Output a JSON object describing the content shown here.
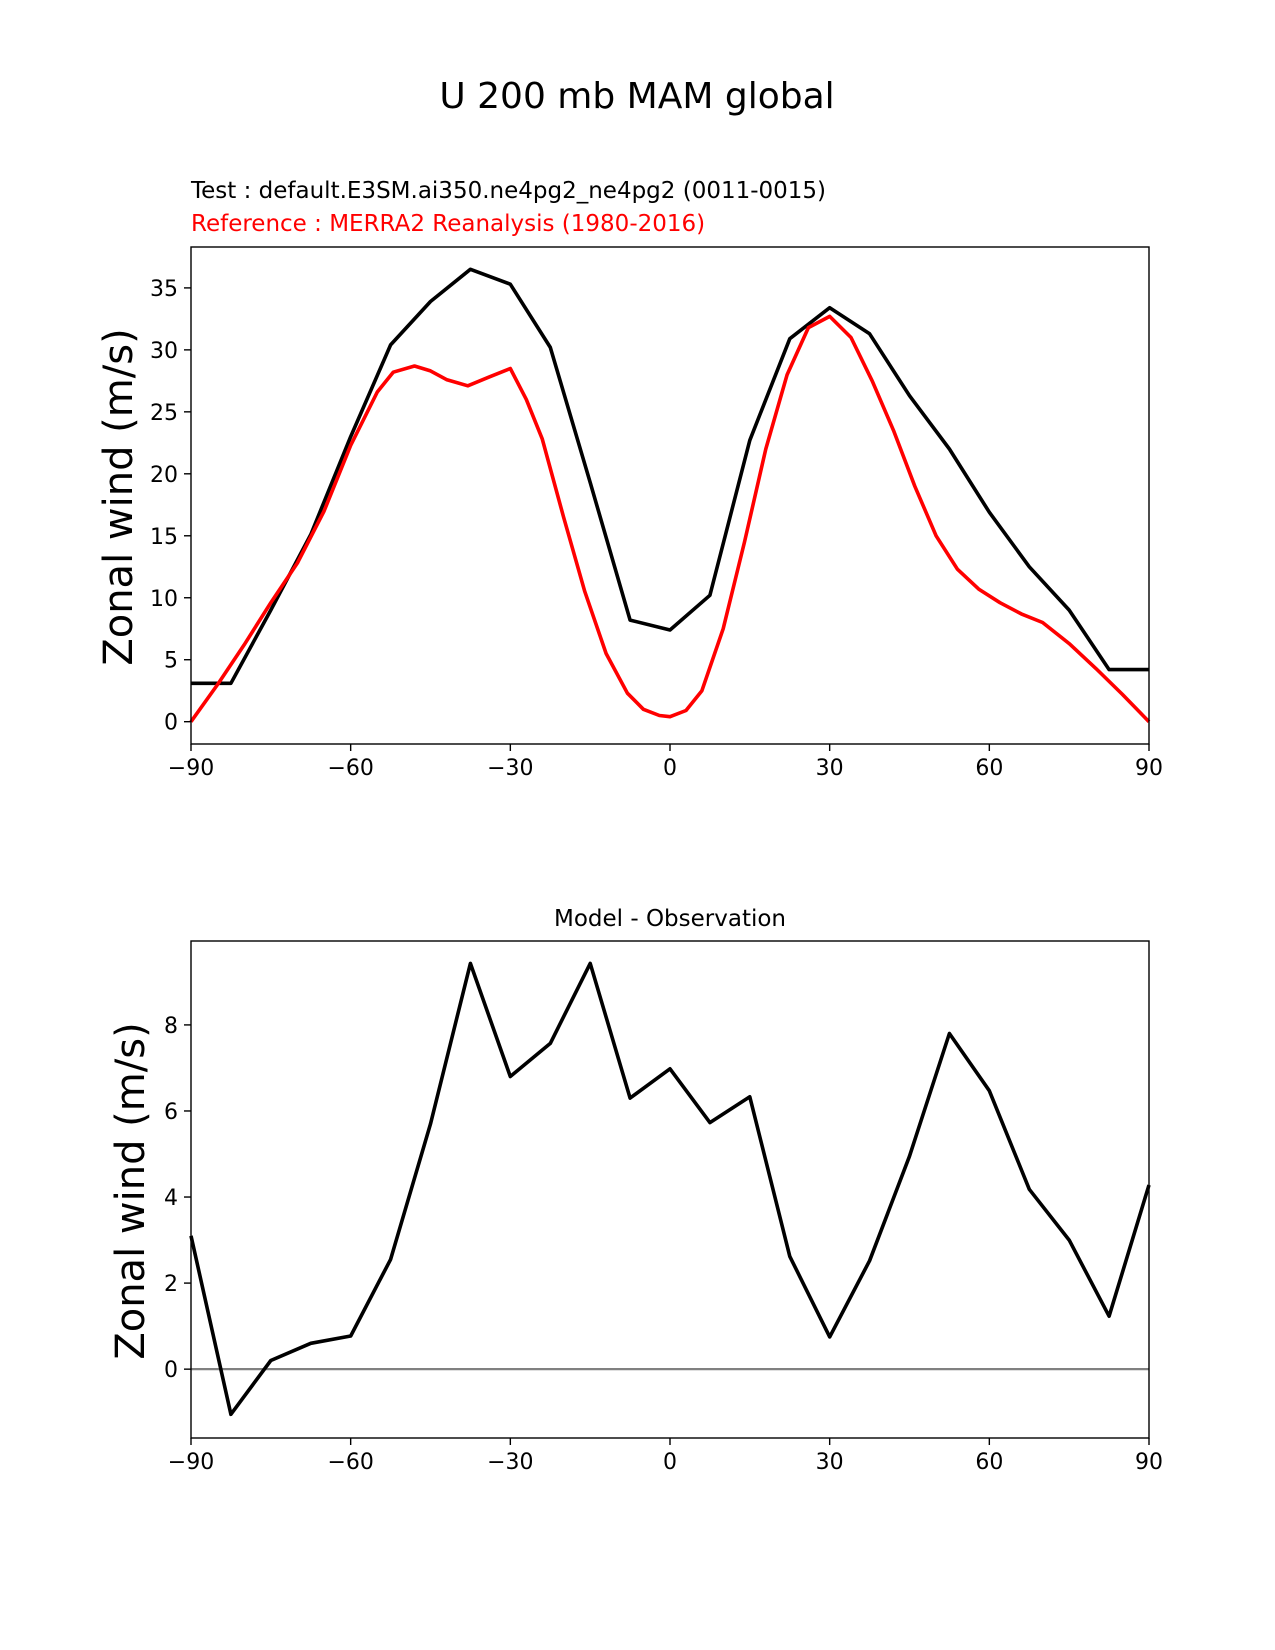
{
  "title": "U 200 mb MAM global",
  "colors": {
    "test": "#000000",
    "reference": "#ff0000",
    "zero_line": "#808080",
    "axes": "#000000"
  },
  "chart_data": [
    {
      "type": "line",
      "test_label": "Test : default.E3SM.ai350.ne4pg2_ne4pg2 (0011-0015)",
      "ref_label": "Reference : MERRA2 Reanalysis (1980-2016)",
      "xlabel": "",
      "ylabel": "Zonal wind (m/s)",
      "xlim": [
        -90,
        90
      ],
      "ylim": [
        -1.8,
        38.3
      ],
      "xticks": [
        -90,
        -60,
        -30,
        0,
        30,
        60,
        90
      ],
      "xtick_labels": [
        "−90",
        "−60",
        "−30",
        "0",
        "30",
        "60",
        "90"
      ],
      "yticks": [
        0,
        5,
        10,
        15,
        20,
        25,
        30,
        35
      ],
      "ytick_labels": [
        "0",
        "5",
        "10",
        "15",
        "20",
        "25",
        "30",
        "35"
      ],
      "series": [
        {
          "name": "Test",
          "color": "#000000",
          "x": [
            -90,
            -82.5,
            -75,
            -67.5,
            -60,
            -52.5,
            -45,
            -37.5,
            -30,
            -22.5,
            -15,
            -7.5,
            0,
            7.5,
            15,
            22.5,
            30,
            37.5,
            45,
            52.5,
            60,
            67.5,
            75,
            82.5,
            90
          ],
          "values": [
            3.1,
            3.1,
            9.0,
            15.1,
            23.0,
            30.4,
            33.9,
            36.5,
            35.3,
            30.2,
            19.3,
            8.2,
            7.4,
            10.2,
            22.7,
            30.9,
            33.4,
            31.3,
            26.3,
            22.0,
            16.9,
            12.5,
            9.0,
            4.2,
            4.2
          ]
        },
        {
          "name": "Reference",
          "color": "#ff0000",
          "x": [
            -90,
            -85,
            -80,
            -75,
            -70,
            -65,
            -60,
            -55,
            -52,
            -48,
            -45,
            -42,
            -38,
            -34,
            -30,
            -27,
            -24,
            -20,
            -16,
            -12,
            -8,
            -5,
            -2,
            0,
            3,
            6,
            10,
            14,
            18,
            22,
            26,
            30,
            34,
            38,
            42,
            46,
            50,
            54,
            58,
            62,
            66,
            70,
            75,
            80,
            85,
            90
          ],
          "values": [
            0.0,
            3.0,
            6.2,
            9.6,
            12.8,
            17.0,
            22.3,
            26.6,
            28.2,
            28.7,
            28.3,
            27.6,
            27.1,
            27.8,
            28.5,
            26.0,
            22.8,
            16.5,
            10.5,
            5.5,
            2.3,
            1.0,
            0.5,
            0.4,
            0.9,
            2.5,
            7.5,
            14.5,
            22.0,
            28.0,
            31.8,
            32.7,
            31.0,
            27.5,
            23.5,
            19.0,
            15.0,
            12.3,
            10.7,
            9.6,
            8.7,
            8.0,
            6.3,
            4.3,
            2.2,
            0.0
          ]
        }
      ]
    },
    {
      "type": "line",
      "title": "Model - Observation",
      "xlabel": "",
      "ylabel": "Zonal wind (m/s)",
      "xlim": [
        -90,
        90
      ],
      "ylim": [
        -1.6,
        9.95
      ],
      "xticks": [
        -90,
        -60,
        -30,
        0,
        30,
        60,
        90
      ],
      "xtick_labels": [
        "−90",
        "−60",
        "−30",
        "0",
        "30",
        "60",
        "90"
      ],
      "yticks": [
        0,
        2,
        4,
        6,
        8
      ],
      "ytick_labels": [
        "0",
        "2",
        "4",
        "6",
        "8"
      ],
      "zero_line": 0,
      "series": [
        {
          "name": "Difference",
          "color": "#000000",
          "x": [
            -90,
            -82.5,
            -75,
            -67.5,
            -60,
            -52.5,
            -45,
            -37.5,
            -30,
            -22.5,
            -15,
            -7.5,
            0,
            7.5,
            15,
            22.5,
            30,
            37.5,
            45,
            52.5,
            60,
            67.5,
            75,
            82.5,
            90
          ],
          "values": [
            3.1,
            -1.05,
            0.2,
            0.6,
            0.77,
            2.55,
            5.7,
            9.43,
            6.8,
            7.57,
            9.43,
            6.3,
            6.98,
            5.73,
            6.33,
            2.62,
            0.75,
            2.52,
            4.95,
            7.8,
            6.47,
            4.18,
            3.0,
            1.23,
            4.28
          ]
        }
      ]
    }
  ]
}
